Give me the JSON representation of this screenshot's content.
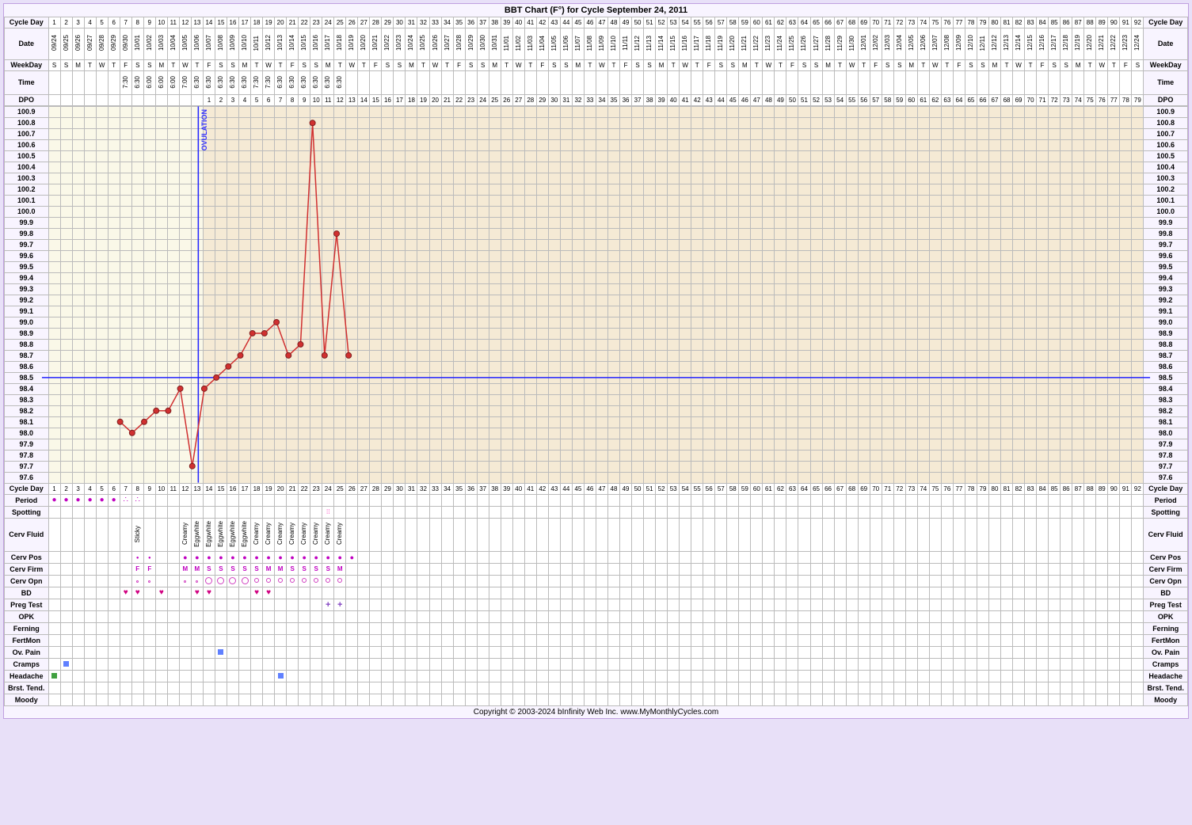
{
  "title": "BBT Chart (F°) for Cycle September 24, 2011",
  "footer": "Copyright © 2003-2024 bInfinity Web Inc.    www.MyMonthlyCycles.com",
  "numDays": 92,
  "ovulationDay": 13,
  "coverlineTemp": 98.5,
  "labels": {
    "cycleDay": "Cycle Day",
    "date": "Date",
    "weekDay": "WeekDay",
    "time": "Time",
    "dpo": "DPO",
    "period": "Period",
    "spotting": "Spotting",
    "cervFluid": "Cerv Fluid",
    "cervPos": "Cerv Pos",
    "cervFirm": "Cerv Firm",
    "cervOpn": "Cerv Opn",
    "bd": "BD",
    "pregTest": "Preg Test",
    "opk": "OPK",
    "ferning": "Ferning",
    "fertMon": "FertMon",
    "ovPain": "Ov. Pain",
    "cramps": "Cramps",
    "headache": "Headache",
    "brstTend": "Brst. Tend.",
    "moody": "Moody"
  },
  "dates": [
    "09/24",
    "09/25",
    "09/26",
    "09/27",
    "09/28",
    "09/29",
    "09/30",
    "10/01",
    "10/02",
    "10/03",
    "10/04",
    "10/05",
    "10/06",
    "10/07",
    "10/08",
    "10/09",
    "10/10",
    "10/11",
    "10/12",
    "10/13",
    "10/14",
    "10/15",
    "10/16",
    "10/17",
    "10/18",
    "10/19",
    "10/20",
    "10/21",
    "10/22",
    "10/23",
    "10/24",
    "10/25",
    "10/26",
    "10/27",
    "10/28",
    "10/29",
    "10/30",
    "10/31",
    "11/01",
    "11/02",
    "11/03",
    "11/04",
    "11/05",
    "11/06",
    "11/07",
    "11/08",
    "11/09",
    "11/10",
    "11/11",
    "11/12",
    "11/13",
    "11/14",
    "11/15",
    "11/16",
    "11/17",
    "11/18",
    "11/19",
    "11/20",
    "11/21",
    "11/22",
    "11/23",
    "11/24",
    "11/25",
    "11/26",
    "11/27",
    "11/28",
    "11/29",
    "11/30",
    "12/01",
    "12/02",
    "12/03",
    "12/04",
    "12/05",
    "12/06",
    "12/07",
    "12/08",
    "12/09",
    "12/10",
    "12/11",
    "12/12",
    "12/13",
    "12/14",
    "12/15",
    "12/16",
    "12/17",
    "12/18",
    "12/19",
    "12/20",
    "12/21",
    "12/22",
    "12/23",
    "12/24"
  ],
  "weekdays": [
    "S",
    "S",
    "M",
    "T",
    "W",
    "T",
    "F",
    "S",
    "S",
    "M",
    "T",
    "W",
    "T",
    "F",
    "S",
    "S",
    "M",
    "T",
    "W",
    "T",
    "F",
    "S",
    "S",
    "M",
    "T",
    "W",
    "T",
    "F",
    "S",
    "S",
    "M",
    "T",
    "W",
    "T",
    "F",
    "S",
    "S",
    "M",
    "T",
    "W",
    "T",
    "F",
    "S",
    "S",
    "M",
    "T",
    "W",
    "T",
    "F",
    "S",
    "S",
    "M",
    "T",
    "W",
    "T",
    "F",
    "S",
    "S",
    "M",
    "T",
    "W",
    "T",
    "F",
    "S",
    "S",
    "M",
    "T",
    "W",
    "T",
    "F",
    "S",
    "S",
    "M",
    "T",
    "W",
    "T",
    "F",
    "S",
    "S",
    "M",
    "T",
    "W",
    "T",
    "F",
    "S",
    "S",
    "M",
    "T",
    "W",
    "T",
    "F",
    "S"
  ],
  "times": {
    "7": "7:30",
    "8": "6:30",
    "9": "6:00",
    "10": "6:00",
    "11": "6:00",
    "12": "7:00",
    "13": "6:30",
    "14": "6:30",
    "15": "6:30",
    "16": "6:30",
    "17": "6:30",
    "18": "7:30",
    "19": "7:30",
    "20": "6:30",
    "21": "6:30",
    "22": "6:30",
    "23": "6:30",
    "24": "6:30",
    "25": "6:30"
  },
  "dpoStart": 14,
  "tempScale": {
    "min": 97.6,
    "max": 100.9,
    "step": 0.1
  },
  "temps": {
    "7": 98.1,
    "8": 98.0,
    "9": 98.1,
    "10": 98.2,
    "11": 98.2,
    "12": 98.4,
    "13": 97.7,
    "14": 98.4,
    "15": 98.5,
    "16": 98.6,
    "17": 98.7,
    "18": 98.9,
    "19": 98.9,
    "20": 99.0,
    "21": 98.7,
    "22": 98.8,
    "23": 100.8,
    "24": 98.7,
    "25": 99.8,
    "26": 98.7
  },
  "chart_style": {
    "line_color": "#d03030",
    "point_fill": "#d03030",
    "point_stroke": "#802020",
    "point_radius": 3.5,
    "line_width": 1.5,
    "coverline_color": "#2020ff",
    "ovulation_line_color": "#2020ff",
    "pre_ovul_bg": "#faf8e8",
    "post_ovul_bg": "#f5ead5",
    "grid_color": "#bbbbbb"
  },
  "period": {
    "1": "●",
    "2": "●",
    "3": "●",
    "4": "●",
    "5": "●",
    "6": "●",
    "7": "∴",
    "8": "∴"
  },
  "spotting": {
    "24": "⁞⁞"
  },
  "cervFluid": {
    "8": "Sticky",
    "12": "Creamy",
    "13": "Eggwhite",
    "14": "Eggwhite",
    "15": "Eggwhite",
    "16": "Eggwhite",
    "17": "Eggwhite",
    "18": "Creamy",
    "19": "Creamy",
    "20": "Creamy",
    "21": "Creamy",
    "22": "Creamy",
    "23": "Creamy",
    "24": "Creamy",
    "25": "Creamy"
  },
  "cervPos": {
    "8": "●",
    "9": "●",
    "12": "●",
    "13": "●",
    "14": "●",
    "15": "●",
    "16": "●",
    "17": "●",
    "18": "●",
    "19": "●",
    "20": "●",
    "21": "●",
    "22": "●",
    "23": "●",
    "24": "●",
    "25": "●",
    "26": "●"
  },
  "cervFirm": {
    "8": "F",
    "9": "F",
    "12": "M",
    "13": "M",
    "14": "S",
    "15": "S",
    "16": "S",
    "17": "S",
    "18": "S",
    "19": "M",
    "20": "M",
    "21": "S",
    "22": "S",
    "23": "S",
    "24": "S",
    "25": "M"
  },
  "cervOpn": {
    "8": 1,
    "9": 1,
    "12": 1,
    "13": 1,
    "14": 3,
    "15": 3,
    "16": 3,
    "17": 3,
    "18": 2,
    "19": 2,
    "20": 2,
    "21": 2,
    "22": 2,
    "23": 2,
    "24": 2,
    "25": 2
  },
  "bd": {
    "7": "♥",
    "8": "♥",
    "10": "♥",
    "13": "♥",
    "14": "♥",
    "18": "♥",
    "19": "♥"
  },
  "pregTest": {
    "24": "+",
    "25": "+"
  },
  "ovPain": {
    "15": true
  },
  "cramps": {
    "2": true
  },
  "headache": {
    "1": true,
    "20": true
  }
}
